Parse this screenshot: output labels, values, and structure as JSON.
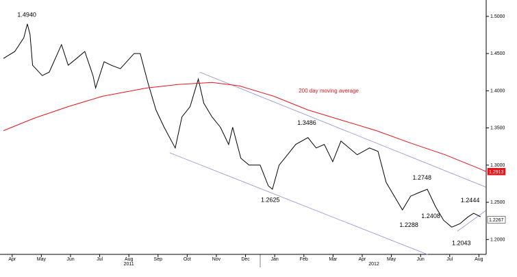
{
  "chart_data": {
    "type": "line",
    "xlim": [
      -0.3,
      16.25
    ],
    "ylim": [
      1.18,
      1.522
    ],
    "xticks": [
      {
        "value": 0,
        "label": "Apr"
      },
      {
        "value": 1,
        "label": "May"
      },
      {
        "value": 2,
        "label": "Jun"
      },
      {
        "value": 3,
        "label": "Jul"
      },
      {
        "value": 4,
        "label": "Aug"
      },
      {
        "value": 5,
        "label": "Sep"
      },
      {
        "value": 6,
        "label": "Oct"
      },
      {
        "value": 7,
        "label": "Nov"
      },
      {
        "value": 8,
        "label": "Dec"
      },
      {
        "value": 9,
        "label": "Jan"
      },
      {
        "value": 10,
        "label": "Feb"
      },
      {
        "value": 11,
        "label": "Mar"
      },
      {
        "value": 12,
        "label": "Apr"
      },
      {
        "value": 13,
        "label": "May"
      },
      {
        "value": 14,
        "label": "Jun"
      },
      {
        "value": 15,
        "label": "Jul"
      },
      {
        "value": 16,
        "label": "Aug"
      }
    ],
    "year_ticks": [
      {
        "value": 4,
        "label": "2011"
      },
      {
        "value": 12.4,
        "label": "2012"
      }
    ],
    "yticks": [
      {
        "value": 1.2,
        "label": "1.2000"
      },
      {
        "value": 1.25,
        "label": "1.2500"
      },
      {
        "value": 1.3,
        "label": "1.3000"
      },
      {
        "value": 1.35,
        "label": "1.3500"
      },
      {
        "value": 1.4,
        "label": "1.4000"
      },
      {
        "value": 1.45,
        "label": "1.4500"
      },
      {
        "value": 1.5,
        "label": "1.5000"
      }
    ],
    "series": [
      {
        "color": "#000000",
        "x": [
          -0.3,
          0.09,
          0.4,
          0.52,
          0.61,
          0.7,
          1.03,
          1.27,
          1.69,
          1.92,
          2.21,
          2.49,
          2.77,
          2.86,
          3.15,
          3.4,
          3.71,
          4.18,
          4.39,
          4.65,
          4.93,
          5.21,
          5.59,
          5.82,
          6.1,
          6.38,
          6.57,
          6.85,
          7.14,
          7.42,
          7.56,
          7.84,
          8.12,
          8.5,
          8.78,
          8.92,
          9.15,
          9.44,
          9.72,
          10.14,
          10.42,
          10.7,
          10.99,
          11.27,
          11.55,
          11.83,
          12.25,
          12.54,
          12.82,
          13.1,
          13.38,
          13.66,
          13.94,
          14.23,
          14.51,
          14.79,
          15.07,
          15.35,
          15.63,
          15.82,
          16.06
        ],
        "values": [
          1.4435,
          1.4528,
          1.4713,
          1.4898,
          1.4759,
          1.4342,
          1.4204,
          1.425,
          1.462,
          1.4342,
          1.4435,
          1.4528,
          1.4204,
          1.4037,
          1.4389,
          1.4342,
          1.4296,
          1.45,
          1.45,
          1.4111,
          1.3741,
          1.3509,
          1.3231,
          1.3648,
          1.3787,
          1.4157,
          1.3833,
          1.3648,
          1.3509,
          1.3278,
          1.3509,
          1.3093,
          1.3,
          1.3,
          1.2722,
          1.2676,
          1.3,
          1.3139,
          1.3278,
          1.337,
          1.3231,
          1.3278,
          1.3046,
          1.3324,
          1.3231,
          1.3139,
          1.3231,
          1.3185,
          1.2768,
          1.2583,
          1.2398,
          1.2583,
          1.263,
          1.2676,
          1.2444,
          1.2259,
          1.2166,
          1.2213,
          1.2305,
          1.2352,
          1.2305
        ],
        "last_value": {
          "value": 1.2267,
          "label": "1.2267"
        }
      },
      {
        "name": "200 day moving average",
        "color": "#e8141c",
        "x": [
          -0.3,
          0.75,
          1.92,
          3.1,
          4.62,
          5.68,
          6.85,
          7.79,
          8.97,
          10.14,
          11.31,
          12.49,
          13.66,
          14.84,
          16.01,
          16.25
        ],
        "values": [
          1.3463,
          1.363,
          1.3787,
          1.3926,
          1.4037,
          1.4083,
          1.4111,
          1.4065,
          1.3926,
          1.3741,
          1.3602,
          1.3463,
          1.3296,
          1.3139,
          1.2954,
          1.2913
        ],
        "last_value": {
          "value": 1.2913,
          "label": "1.2913"
        }
      }
    ],
    "trendlines": [
      {
        "color": "#8c8cd8",
        "x": [
          6.43,
          16.24
        ],
        "values": [
          1.425,
          1.2704
        ]
      },
      {
        "color": "#8c8cd8",
        "x": [
          5.4,
          14.25
        ],
        "values": [
          1.3166,
          1.1796
        ]
      },
      {
        "color": "#8c8cd8",
        "x": [
          15.26,
          16.24
        ],
        "values": [
          1.2111,
          1.2389
        ]
      }
    ],
    "annotations": [
      {
        "value": 1.494,
        "label": "1.4940",
        "x": 0.5,
        "position": "above"
      },
      {
        "value": 1.3486,
        "label": "1.3486",
        "x": 10.1,
        "position": "above"
      },
      {
        "value": 1.2625,
        "label": "1.2625",
        "x": 8.85,
        "position": "below"
      },
      {
        "value": 1.2748,
        "label": "1.2748",
        "x": 14.05,
        "position": "above"
      },
      {
        "value": 1.2444,
        "label": "1.2444",
        "x": 15.7,
        "position": "above"
      },
      {
        "value": 1.2408,
        "label": "1.2408",
        "x": 14.35,
        "position": "below"
      },
      {
        "value": 1.2288,
        "label": "1.2288",
        "x": 13.6,
        "position": "below"
      },
      {
        "value": 1.2043,
        "label": "1.2043",
        "x": 15.4,
        "position": "below"
      }
    ]
  }
}
